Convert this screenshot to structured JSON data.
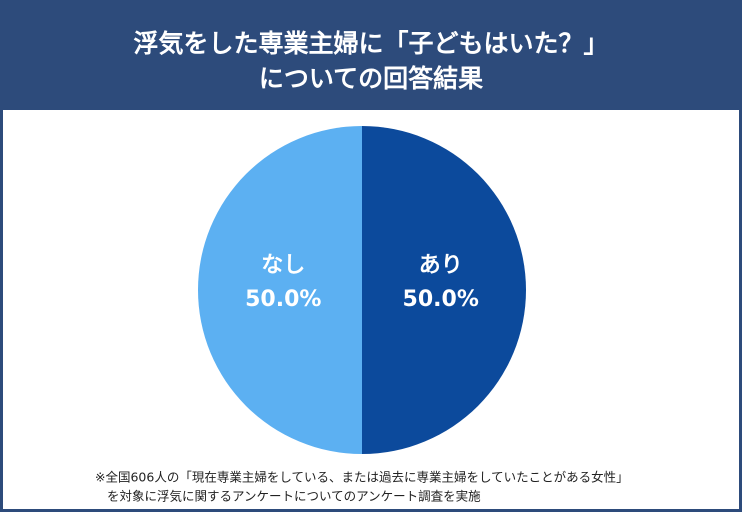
{
  "chart_data": {
    "type": "pie",
    "title": [
      "浮気をした専業主婦に「子どもはいた？」",
      "についての回答結果"
    ],
    "categories": [
      "あり",
      "なし"
    ],
    "values": [
      50,
      50
    ],
    "value_labels": [
      "50.0%",
      "50.0%"
    ],
    "colors": [
      "#0c4a9c",
      "#5cb0f2"
    ],
    "footnote": [
      "※全国606人の「現在専業主婦をしている、または過去に専業主婦をしていたことがある女性」",
      "を対象に浮気に関するアンケートについてのアンケート調査を実施"
    ]
  }
}
